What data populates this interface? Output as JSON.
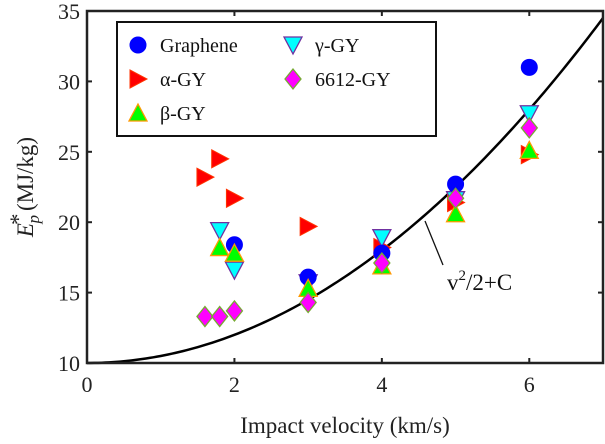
{
  "chart_data": {
    "type": "scatter",
    "title": "",
    "xlabel": "Impact velocity (km/s)",
    "ylabel_main": "E",
    "ylabel_sub": "p",
    "ylabel_sup": "*",
    "ylabel_units": "(MJ/kg)",
    "xlim": [
      0,
      7
    ],
    "ylim": [
      10,
      35
    ],
    "xticks": [
      0,
      2,
      4,
      6
    ],
    "yticks": [
      10,
      15,
      20,
      25,
      30,
      35
    ],
    "grid": false,
    "legend_position": "top-left-inside",
    "series": [
      {
        "name": "Graphene",
        "marker": "circle",
        "color": "#0000ff",
        "edge": "#0000ff",
        "points": [
          [
            2.0,
            18.4
          ],
          [
            3.0,
            16.1
          ],
          [
            4.0,
            17.8
          ],
          [
            5.0,
            22.7
          ],
          [
            6.0,
            31.0
          ]
        ]
      },
      {
        "name": "α-GY",
        "marker": "triangle-right",
        "color": "#ff0000",
        "edge": "#ff3300",
        "points": [
          [
            1.6,
            23.2
          ],
          [
            1.8,
            24.5
          ],
          [
            2.0,
            21.7
          ],
          [
            3.0,
            19.7
          ],
          [
            4.0,
            18.2
          ],
          [
            5.0,
            21.4
          ],
          [
            6.0,
            24.8
          ]
        ]
      },
      {
        "name": "β-GY",
        "marker": "triangle-up",
        "color": "#00ff00",
        "edge": "#ff9900",
        "points": [
          [
            1.8,
            18.2
          ],
          [
            2.0,
            17.8
          ],
          [
            3.0,
            15.3
          ],
          [
            4.0,
            16.9
          ],
          [
            5.0,
            20.6
          ],
          [
            6.0,
            25.1
          ]
        ]
      },
      {
        "name": "γ-GY",
        "marker": "triangle-down",
        "color": "#00ffff",
        "edge": "#7030a0",
        "points": [
          [
            1.8,
            19.4
          ],
          [
            2.0,
            16.6
          ],
          [
            3.0,
            15.7
          ],
          [
            4.0,
            18.9
          ],
          [
            5.0,
            21.6
          ],
          [
            6.0,
            27.7
          ]
        ]
      },
      {
        "name": "6612-GY",
        "marker": "diamond",
        "color": "#ff00ff",
        "edge": "#77aa33",
        "points": [
          [
            1.6,
            13.3
          ],
          [
            1.8,
            13.3
          ],
          [
            2.0,
            13.7
          ],
          [
            3.0,
            14.3
          ],
          [
            4.0,
            17.1
          ],
          [
            5.0,
            21.7
          ],
          [
            6.0,
            26.7
          ]
        ]
      }
    ],
    "fit_curve": {
      "label_base": "v",
      "label_sup": "2",
      "label_rest": "/2+C",
      "formula": "v^2/2 + C",
      "C": 10,
      "color": "#000000"
    }
  }
}
